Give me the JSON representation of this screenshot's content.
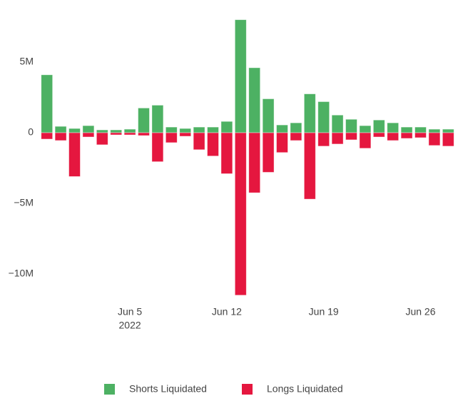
{
  "chart_data": {
    "type": "bar",
    "barmode": "relative",
    "x": [
      "2022-05-30",
      "2022-05-31",
      "2022-06-01",
      "2022-06-02",
      "2022-06-03",
      "2022-06-04",
      "2022-06-05",
      "2022-06-06",
      "2022-06-07",
      "2022-06-08",
      "2022-06-09",
      "2022-06-10",
      "2022-06-11",
      "2022-06-12",
      "2022-06-13",
      "2022-06-14",
      "2022-06-15",
      "2022-06-16",
      "2022-06-17",
      "2022-06-18",
      "2022-06-19",
      "2022-06-20",
      "2022-06-21",
      "2022-06-22",
      "2022-06-23",
      "2022-06-24",
      "2022-06-25",
      "2022-06-26",
      "2022-06-27",
      "2022-06-28"
    ],
    "series": [
      {
        "name": "Shorts Liquidated",
        "color": "#4db163",
        "values": [
          4100000,
          450000,
          300000,
          500000,
          200000,
          200000,
          250000,
          1750000,
          1950000,
          400000,
          300000,
          400000,
          400000,
          800000,
          8000000,
          4600000,
          2400000,
          550000,
          700000,
          2750000,
          2200000,
          1250000,
          950000,
          500000,
          900000,
          700000,
          400000,
          400000,
          250000,
          250000
        ]
      },
      {
        "name": "Longs Liquidated",
        "color": "#e5173f",
        "values": [
          -450000,
          -550000,
          -3100000,
          -300000,
          -850000,
          -150000,
          -150000,
          -200000,
          -2050000,
          -700000,
          -250000,
          -1200000,
          -1650000,
          -2900000,
          -11500000,
          -4250000,
          -2800000,
          -1400000,
          -550000,
          -4700000,
          -950000,
          -800000,
          -500000,
          -1100000,
          -300000,
          -550000,
          -400000,
          -350000,
          -900000,
          -950000
        ]
      }
    ],
    "xlim": [
      "2022-05-29T12:00:00Z",
      "2022-06-28T12:00:00Z"
    ],
    "xticks": [
      {
        "value": "2022-06-05",
        "label": "Jun 5\n2022"
      },
      {
        "value": "2022-06-12",
        "label": "Jun 12"
      },
      {
        "value": "2022-06-19",
        "label": "Jun 19"
      },
      {
        "value": "2022-06-26",
        "label": "Jun 26"
      }
    ],
    "ylim": [
      -11600000,
      8300000
    ],
    "yticks": [
      {
        "value": -10000000,
        "label": "−10M"
      },
      {
        "value": -5000000,
        "label": "−5M"
      },
      0,
      {
        "value": 5000000,
        "label": "5M"
      }
    ],
    "grid": false,
    "legend": "bottom"
  }
}
